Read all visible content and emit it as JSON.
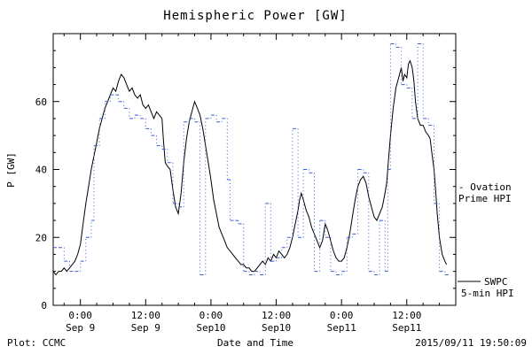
{
  "title": "Hemispheric Power [GW]",
  "footer": {
    "left": "Plot: CCMC",
    "timestamp": "2015/09/11 19:50:09"
  },
  "legend": {
    "ovation": {
      "line1": "- Ovation",
      "line2": "Prime HPI",
      "color": "#3a5fd0"
    },
    "swpc": {
      "line1": "SWPC",
      "line2": "5-min HPI",
      "color": "#000000"
    }
  },
  "chart_data": {
    "type": "line",
    "title": "Hemispheric Power [GW]",
    "xlabel": "Date and Time",
    "ylabel": "P [GW]",
    "ylim": [
      0,
      80
    ],
    "xlim_hours": [
      -5,
      69
    ],
    "x_unit": "hours from 2015-09-09 00:00 UT",
    "grid": false,
    "y_ticks": [
      0,
      20,
      40,
      60
    ],
    "x_ticks": [
      {
        "h": 0,
        "time": "0:00",
        "date": "Sep 9"
      },
      {
        "h": 12,
        "time": "12:00",
        "date": "Sep 9"
      },
      {
        "h": 24,
        "time": "0:00",
        "date": "Sep10"
      },
      {
        "h": 36,
        "time": "12:00",
        "date": "Sep10"
      },
      {
        "h": 48,
        "time": "0:00",
        "date": "Sep11"
      },
      {
        "h": 60,
        "time": "12:00",
        "date": "Sep11"
      }
    ],
    "series": [
      {
        "name": "SWPC 5-min HPI",
        "style": "solid",
        "color": "#000000",
        "points": [
          [
            -5,
            10
          ],
          [
            -4.5,
            9
          ],
          [
            -4,
            10
          ],
          [
            -3.5,
            10
          ],
          [
            -3,
            11
          ],
          [
            -2.5,
            10
          ],
          [
            -2,
            11
          ],
          [
            -1.5,
            12
          ],
          [
            -1,
            13
          ],
          [
            -0.5,
            15
          ],
          [
            0,
            18
          ],
          [
            0.5,
            24
          ],
          [
            1,
            30
          ],
          [
            1.5,
            35
          ],
          [
            2,
            40
          ],
          [
            2.5,
            44
          ],
          [
            3,
            48
          ],
          [
            3.5,
            52
          ],
          [
            4,
            55
          ],
          [
            4.5,
            58
          ],
          [
            5,
            60
          ],
          [
            5.5,
            62
          ],
          [
            6,
            64
          ],
          [
            6.5,
            63
          ],
          [
            7,
            66
          ],
          [
            7.5,
            68
          ],
          [
            8,
            67
          ],
          [
            8.5,
            65
          ],
          [
            9,
            63
          ],
          [
            9.5,
            64
          ],
          [
            10,
            62
          ],
          [
            10.5,
            61
          ],
          [
            11,
            62
          ],
          [
            11.5,
            59
          ],
          [
            12,
            58
          ],
          [
            12.5,
            59
          ],
          [
            13,
            57
          ],
          [
            13.5,
            55
          ],
          [
            14,
            57
          ],
          [
            14.5,
            56
          ],
          [
            15,
            55
          ],
          [
            15.3,
            48
          ],
          [
            15.6,
            42
          ],
          [
            16,
            41
          ],
          [
            16.5,
            40
          ],
          [
            17,
            34
          ],
          [
            17.5,
            29
          ],
          [
            18,
            27
          ],
          [
            18.5,
            33
          ],
          [
            19,
            42
          ],
          [
            19.5,
            49
          ],
          [
            20,
            54
          ],
          [
            20.5,
            57
          ],
          [
            21,
            60
          ],
          [
            21.5,
            58
          ],
          [
            22,
            56
          ],
          [
            22.5,
            52
          ],
          [
            23,
            47
          ],
          [
            23.5,
            42
          ],
          [
            24,
            37
          ],
          [
            24.5,
            31
          ],
          [
            25,
            27
          ],
          [
            25.5,
            23
          ],
          [
            26,
            21
          ],
          [
            26.5,
            19
          ],
          [
            27,
            17
          ],
          [
            27.5,
            16
          ],
          [
            28,
            15
          ],
          [
            28.5,
            14
          ],
          [
            29,
            13
          ],
          [
            29.5,
            12
          ],
          [
            30,
            12
          ],
          [
            30.5,
            11
          ],
          [
            31,
            11
          ],
          [
            31.5,
            10
          ],
          [
            32,
            10
          ],
          [
            32.5,
            11
          ],
          [
            33,
            12
          ],
          [
            33.5,
            13
          ],
          [
            34,
            12
          ],
          [
            34.5,
            14
          ],
          [
            35,
            13
          ],
          [
            35.5,
            15
          ],
          [
            36,
            14
          ],
          [
            36.5,
            16
          ],
          [
            37,
            15
          ],
          [
            37.5,
            14
          ],
          [
            38,
            15
          ],
          [
            38.5,
            17
          ],
          [
            39,
            20
          ],
          [
            39.5,
            24
          ],
          [
            40,
            28
          ],
          [
            40.3,
            31
          ],
          [
            40.6,
            33
          ],
          [
            41,
            31
          ],
          [
            41.5,
            28
          ],
          [
            42,
            26
          ],
          [
            42.5,
            23
          ],
          [
            43,
            21
          ],
          [
            43.5,
            19
          ],
          [
            44,
            17
          ],
          [
            44.5,
            19
          ],
          [
            45,
            24
          ],
          [
            45.5,
            22
          ],
          [
            46,
            19
          ],
          [
            46.5,
            16
          ],
          [
            47,
            14
          ],
          [
            47.5,
            13
          ],
          [
            48,
            13
          ],
          [
            48.5,
            14
          ],
          [
            49,
            17
          ],
          [
            49.5,
            21
          ],
          [
            50,
            26
          ],
          [
            50.5,
            31
          ],
          [
            51,
            35
          ],
          [
            51.5,
            37
          ],
          [
            52,
            38
          ],
          [
            52.5,
            36
          ],
          [
            53,
            32
          ],
          [
            53.5,
            29
          ],
          [
            54,
            26
          ],
          [
            54.5,
            25
          ],
          [
            55,
            27
          ],
          [
            55.5,
            29
          ],
          [
            56,
            33
          ],
          [
            56.3,
            36
          ],
          [
            56.6,
            42
          ],
          [
            57,
            50
          ],
          [
            57.5,
            58
          ],
          [
            58,
            64
          ],
          [
            58.5,
            67
          ],
          [
            59,
            70
          ],
          [
            59.3,
            66
          ],
          [
            59.6,
            68
          ],
          [
            60,
            67
          ],
          [
            60.3,
            71
          ],
          [
            60.6,
            72
          ],
          [
            61,
            70
          ],
          [
            61.3,
            66
          ],
          [
            61.6,
            60
          ],
          [
            62,
            55
          ],
          [
            62.5,
            53
          ],
          [
            63,
            53
          ],
          [
            63.5,
            51
          ],
          [
            64,
            50
          ],
          [
            64.3,
            49
          ],
          [
            64.6,
            45
          ],
          [
            65,
            40
          ],
          [
            65.3,
            34
          ],
          [
            65.6,
            27
          ],
          [
            66,
            20
          ],
          [
            66.5,
            15
          ],
          [
            67,
            13
          ],
          [
            67.3,
            12
          ]
        ]
      },
      {
        "name": "Ovation Prime HPI",
        "style": "step-dotted",
        "color": "#3a5fd0",
        "points": [
          [
            -5,
            17
          ],
          [
            -3,
            13
          ],
          [
            -2,
            10
          ],
          [
            -1,
            10
          ],
          [
            0,
            13
          ],
          [
            1,
            20
          ],
          [
            2,
            25
          ],
          [
            2.5,
            47
          ],
          [
            3.5,
            55
          ],
          [
            4.5,
            60
          ],
          [
            5.5,
            62
          ],
          [
            7,
            60
          ],
          [
            8,
            58
          ],
          [
            9,
            55
          ],
          [
            10,
            56
          ],
          [
            11,
            55
          ],
          [
            12,
            52
          ],
          [
            13,
            50
          ],
          [
            14,
            47
          ],
          [
            15,
            46
          ],
          [
            16,
            42
          ],
          [
            17,
            30
          ],
          [
            18,
            29
          ],
          [
            19,
            54
          ],
          [
            20,
            55
          ],
          [
            21,
            54
          ],
          [
            22,
            9
          ],
          [
            23,
            55
          ],
          [
            24,
            56
          ],
          [
            25,
            54
          ],
          [
            26,
            55
          ],
          [
            27,
            37
          ],
          [
            27.5,
            25
          ],
          [
            29,
            24
          ],
          [
            30,
            10
          ],
          [
            31,
            9
          ],
          [
            32,
            10
          ],
          [
            33,
            9
          ],
          [
            34,
            30
          ],
          [
            35,
            13
          ],
          [
            36,
            14
          ],
          [
            37,
            17
          ],
          [
            38,
            20
          ],
          [
            39,
            52
          ],
          [
            40,
            20
          ],
          [
            41,
            40
          ],
          [
            42,
            39
          ],
          [
            43,
            10
          ],
          [
            44,
            25
          ],
          [
            45,
            20
          ],
          [
            46,
            10
          ],
          [
            47,
            9
          ],
          [
            48,
            10
          ],
          [
            49,
            20
          ],
          [
            50,
            21
          ],
          [
            51,
            40
          ],
          [
            52,
            39
          ],
          [
            53,
            10
          ],
          [
            54,
            9
          ],
          [
            55,
            25
          ],
          [
            56,
            10
          ],
          [
            56.5,
            40
          ],
          [
            57,
            77
          ],
          [
            58,
            76
          ],
          [
            59,
            65
          ],
          [
            60,
            64
          ],
          [
            61,
            55
          ],
          [
            62,
            77
          ],
          [
            63,
            55
          ],
          [
            64,
            53
          ],
          [
            65,
            30
          ],
          [
            66,
            10
          ],
          [
            67,
            9
          ]
        ]
      }
    ]
  }
}
